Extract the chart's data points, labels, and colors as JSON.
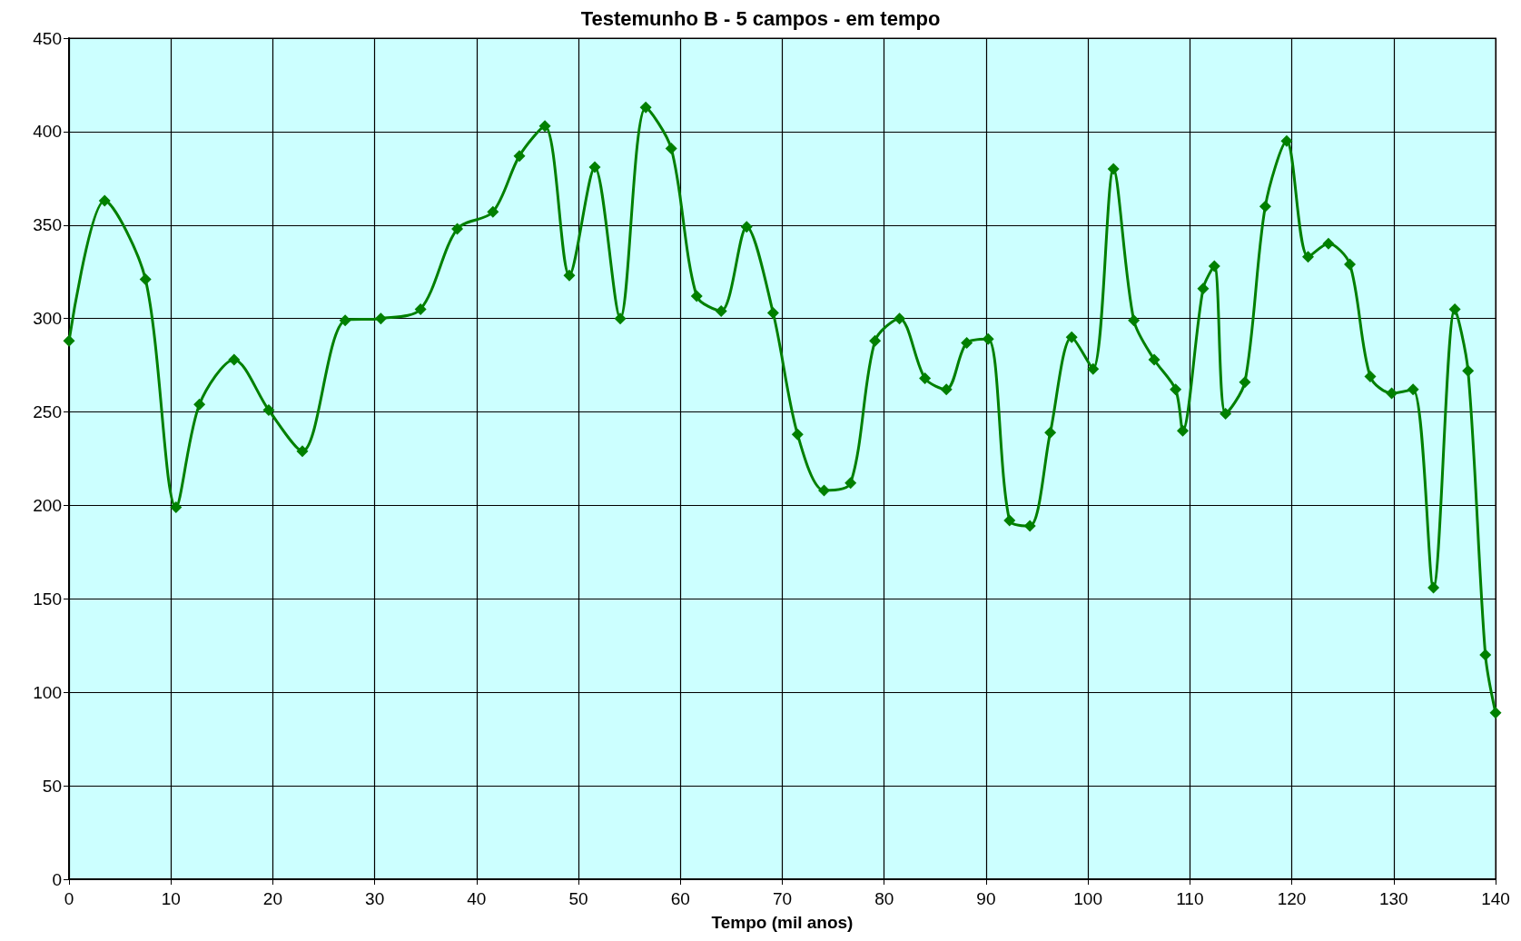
{
  "chart_data": {
    "type": "line",
    "title": "Testemunho B - 5 campos - em tempo",
    "xlabel": "Tempo (mil anos)",
    "x": [
      0,
      3.5,
      7.5,
      10.5,
      12.8,
      16.2,
      19.6,
      22.9,
      27.1,
      30.6,
      34.5,
      38.1,
      41.6,
      44.2,
      46.7,
      49.1,
      51.6,
      54.1,
      56.6,
      59.1,
      61.6,
      64.0,
      66.5,
      69.1,
      71.5,
      74.1,
      76.7,
      79.1,
      81.5,
      84.0,
      86.1,
      88.1,
      90.2,
      92.3,
      94.3,
      96.3,
      98.4,
      100.5,
      102.5,
      104.5,
      106.5,
      108.6,
      109.3,
      111.3,
      112.4,
      113.5,
      115.4,
      117.4,
      119.5,
      121.6,
      123.6,
      125.7,
      127.7,
      129.8,
      131.9,
      133.9,
      136.0,
      137.3,
      139.0,
      140.0
    ],
    "series": [
      {
        "color": "#008000",
        "values": [
          288,
          363,
          321,
          199,
          254,
          278,
          251,
          229,
          299,
          300,
          305,
          348,
          357,
          387,
          403,
          323,
          381,
          300,
          413,
          391,
          312,
          304,
          349,
          303,
          238,
          208,
          212,
          288,
          300,
          268,
          262,
          287,
          289,
          192,
          189,
          239,
          290,
          273,
          380,
          299,
          278,
          262,
          240,
          316,
          328,
          249,
          266,
          360,
          395,
          333,
          340,
          329,
          269,
          260,
          262,
          156,
          305,
          272,
          120,
          89
        ]
      }
    ],
    "xlim": [
      0,
      140
    ],
    "xticks": [
      0,
      10,
      20,
      30,
      40,
      50,
      60,
      70,
      80,
      90,
      100,
      110,
      120,
      130,
      140
    ],
    "ylim": [
      0,
      450
    ],
    "yticks": [
      0,
      50,
      100,
      150,
      200,
      250,
      300,
      350,
      400,
      450
    ],
    "grid": true,
    "marker": "diamond",
    "line_style": "solid"
  }
}
